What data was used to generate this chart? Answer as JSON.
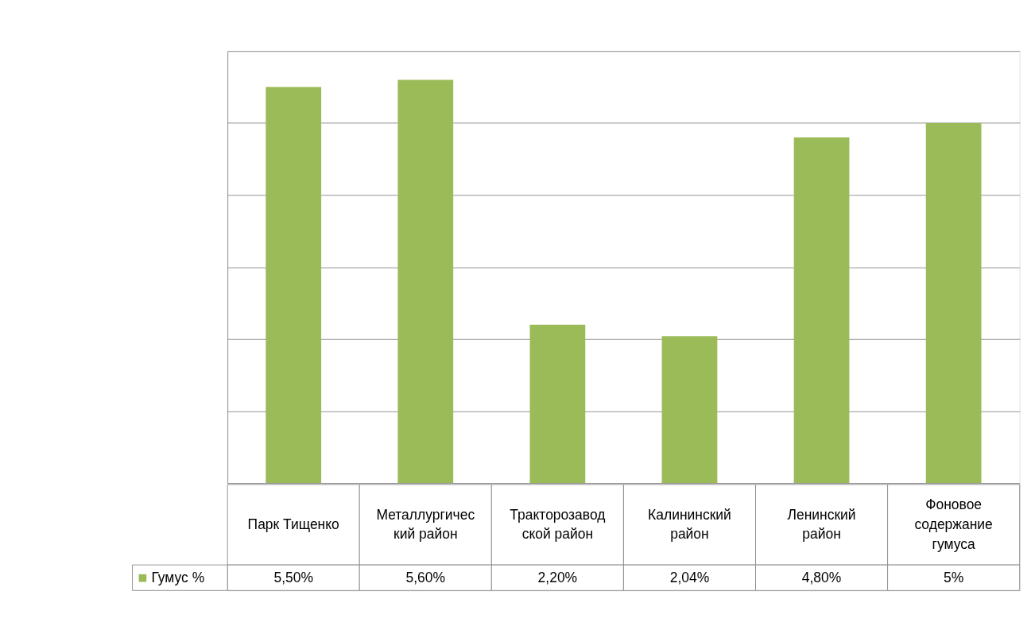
{
  "chart_data": {
    "type": "bar",
    "categories": [
      "Парк Тищенко",
      "Металлургический район",
      "Тракторозаводской район",
      "Калининский район",
      "Ленинский район",
      "Фоновое содержание гумуса"
    ],
    "series": [
      {
        "name": "Гумус %",
        "color": "#9bbb59",
        "values": [
          5.5,
          5.6,
          2.2,
          2.04,
          4.8,
          5
        ],
        "value_labels": [
          "5,50%",
          "5,60%",
          "2,20%",
          "2,04%",
          "4,80%",
          "5%"
        ]
      }
    ],
    "ylim": [
      0,
      6
    ],
    "yticks": [
      {
        "value": 0,
        "label": null
      },
      {
        "value": 1,
        "label": null
      },
      {
        "value": 2,
        "label": null
      },
      {
        "value": 3,
        "label": null
      },
      {
        "value": 4,
        "label": null
      },
      {
        "value": 5,
        "label": null
      },
      {
        "value": 6,
        "label": null
      }
    ],
    "grid": "y",
    "legend": "bottom left"
  }
}
